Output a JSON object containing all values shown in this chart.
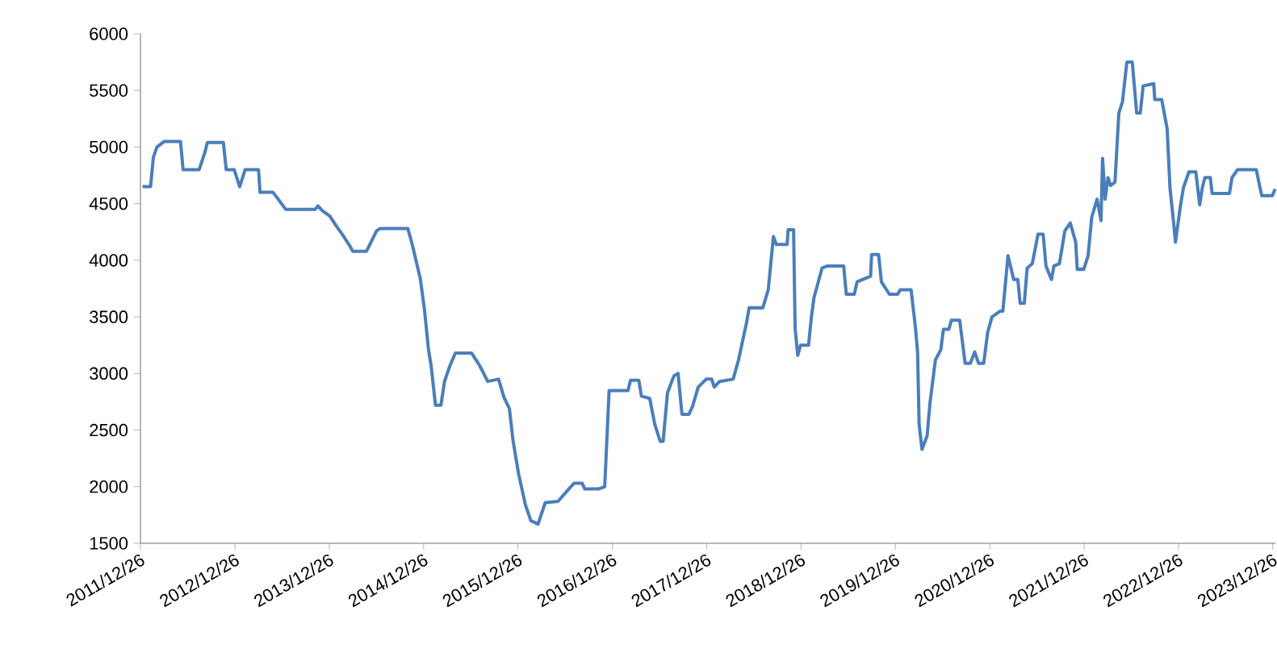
{
  "chart_data": {
    "type": "line",
    "x": [
      "2012-01-03",
      "2012-02-03",
      "2012-02-14",
      "2012-02-28",
      "2012-03-27",
      "2012-05-29",
      "2012-06-08",
      "2012-08-09",
      "2012-08-31",
      "2012-09-10",
      "2012-11-11",
      "2012-11-22",
      "2012-12-23",
      "2013-01-13",
      "2013-02-03",
      "2013-03-27",
      "2013-04-02",
      "2013-05-22",
      "2013-06-08",
      "2013-07-10",
      "2013-11-01",
      "2013-11-12",
      "2013-11-28",
      "2013-12-28",
      "2014-01-20",
      "2014-02-14",
      "2014-03-17",
      "2014-03-27",
      "2014-05-19",
      "2014-06-27",
      "2014-07-10",
      "2014-10-26",
      "2014-11-12",
      "2014-12-13",
      "2014-12-30",
      "2015-01-14",
      "2015-01-24",
      "2015-02-10",
      "2015-03-03",
      "2015-03-17",
      "2015-04-07",
      "2015-04-28",
      "2015-06-30",
      "2015-07-31",
      "2015-08-31",
      "2015-10-12",
      "2015-11-02",
      "2015-11-23",
      "2015-12-07",
      "2015-12-28",
      "2016-01-24",
      "2016-02-14",
      "2016-03-13",
      "2016-04-10",
      "2016-05-29",
      "2016-07-10",
      "2016-07-30",
      "2016-08-31",
      "2016-09-10",
      "2016-11-01",
      "2016-11-26",
      "2016-12-13",
      "2017-02-24",
      "2017-03-06",
      "2017-04-07",
      "2017-04-17",
      "2017-05-19",
      "2017-06-08",
      "2017-06-29",
      "2017-07-10",
      "2017-07-27",
      "2017-08-21",
      "2017-09-06",
      "2017-09-21",
      "2017-10-18",
      "2017-11-01",
      "2017-11-23",
      "2017-12-24",
      "2018-01-14",
      "2018-01-24",
      "2018-02-14",
      "2018-04-07",
      "2018-04-28",
      "2018-05-29",
      "2018-06-08",
      "2018-07-31",
      "2018-08-21",
      "2018-09-10",
      "2018-09-21",
      "2018-11-02",
      "2018-11-06",
      "2018-11-27",
      "2018-12-03",
      "2018-12-13",
      "2018-12-24",
      "2019-01-24",
      "2019-02-04",
      "2019-02-14",
      "2019-03-17",
      "2019-04-07",
      "2019-06-09",
      "2019-06-19",
      "2019-07-20",
      "2019-07-31",
      "2019-09-21",
      "2019-09-25",
      "2019-10-22",
      "2019-11-02",
      "2019-12-03",
      "2020-01-04",
      "2020-01-14",
      "2020-02-25",
      "2020-03-13",
      "2020-03-21",
      "2020-03-27",
      "2020-04-07",
      "2020-04-27",
      "2020-05-08",
      "2020-05-29",
      "2020-06-19",
      "2020-06-29",
      "2020-07-20",
      "2020-07-30",
      "2020-08-31",
      "2020-09-21",
      "2020-10-11",
      "2020-10-28",
      "2020-11-12",
      "2020-12-02",
      "2020-12-17",
      "2021-01-03",
      "2021-02-03",
      "2021-02-14",
      "2021-03-06",
      "2021-03-28",
      "2021-04-13",
      "2021-04-22",
      "2021-05-08",
      "2021-05-19",
      "2021-06-08",
      "2021-06-30",
      "2021-07-20",
      "2021-07-31",
      "2021-08-21",
      "2021-08-31",
      "2021-09-21",
      "2021-10-12",
      "2021-11-02",
      "2021-11-23",
      "2021-11-29",
      "2021-12-24",
      "2022-01-10",
      "2022-01-24",
      "2022-02-14",
      "2022-03-01",
      "2022-03-07",
      "2022-03-17",
      "2022-03-28",
      "2022-04-07",
      "2022-04-24",
      "2022-05-09",
      "2022-05-23",
      "2022-06-09",
      "2022-06-30",
      "2022-07-17",
      "2022-07-31",
      "2022-08-11",
      "2022-09-21",
      "2022-09-25",
      "2022-10-22",
      "2022-11-12",
      "2022-11-23",
      "2022-12-08",
      "2022-12-14",
      "2023-01-03",
      "2023-01-14",
      "2023-02-04",
      "2023-03-03",
      "2023-03-18",
      "2023-03-28",
      "2023-04-07",
      "2023-04-28",
      "2023-05-05",
      "2023-07-11",
      "2023-07-21",
      "2023-08-11",
      "2023-10-23",
      "2023-11-02",
      "2023-11-13",
      "2023-12-24",
      "2024-01-04"
    ],
    "series": [
      {
        "color": "#4a7ebb",
        "values": [
          4650,
          4650,
          4910,
          5000,
          5050,
          5050,
          4800,
          4800,
          4950,
          5040,
          5040,
          4800,
          4800,
          4650,
          4800,
          4800,
          4600,
          4600,
          4550,
          4450,
          4450,
          4480,
          4440,
          4390,
          4310,
          4230,
          4120,
          4080,
          4080,
          4260,
          4280,
          4280,
          4140,
          3840,
          3550,
          3210,
          3070,
          2720,
          2720,
          2930,
          3070,
          3180,
          3180,
          3070,
          2930,
          2950,
          2790,
          2690,
          2410,
          2120,
          1840,
          1700,
          1670,
          1860,
          1870,
          1980,
          2030,
          2030,
          1980,
          1980,
          2000,
          2850,
          2850,
          2940,
          2940,
          2800,
          2780,
          2550,
          2400,
          2400,
          2830,
          2980,
          3000,
          2640,
          2640,
          2710,
          2880,
          2950,
          2950,
          2880,
          2930,
          2950,
          3120,
          3450,
          3580,
          3580,
          3740,
          4210,
          4140,
          4140,
          4270,
          4270,
          3400,
          3160,
          3250,
          3250,
          3500,
          3670,
          3930,
          3950,
          3950,
          3700,
          3700,
          3810,
          3860,
          4050,
          4050,
          3810,
          3700,
          3700,
          3740,
          3740,
          3400,
          3190,
          2550,
          2330,
          2450,
          2740,
          3120,
          3210,
          3390,
          3390,
          3470,
          3470,
          3090,
          3090,
          3190,
          3090,
          3090,
          3360,
          3500,
          3550,
          3550,
          4040,
          3830,
          3830,
          3620,
          3620,
          3930,
          3970,
          4230,
          4230,
          3950,
          3830,
          3950,
          3970,
          4260,
          4330,
          4160,
          3920,
          3920,
          4040,
          4380,
          4540,
          4350,
          4900,
          4540,
          4730,
          4660,
          4690,
          5300,
          5400,
          5750,
          5750,
          5300,
          5300,
          5540,
          5560,
          5420,
          5420,
          5160,
          4640,
          4310,
          4160,
          4490,
          4640,
          4780,
          4780,
          4490,
          4640,
          4730,
          4730,
          4590,
          4590,
          4730,
          4800,
          4800,
          4690,
          4570,
          4570,
          4630
        ]
      }
    ],
    "xlim": [
      "2011-12-26",
      "2024-01-05"
    ],
    "xticks": [
      {
        "value": "2011-12-26",
        "label": "2011/12/26"
      },
      {
        "value": "2012-12-26",
        "label": "2012/12/26"
      },
      {
        "value": "2013-12-26",
        "label": "2013/12/26"
      },
      {
        "value": "2014-12-26",
        "label": "2014/12/26"
      },
      {
        "value": "2015-12-26",
        "label": "2015/12/26"
      },
      {
        "value": "2016-12-26",
        "label": "2016/12/26"
      },
      {
        "value": "2017-12-26",
        "label": "2017/12/26"
      },
      {
        "value": "2018-12-26",
        "label": "2018/12/26"
      },
      {
        "value": "2019-12-26",
        "label": "2019/12/26"
      },
      {
        "value": "2020-12-26",
        "label": "2020/12/26"
      },
      {
        "value": "2021-12-26",
        "label": "2021/12/26"
      },
      {
        "value": "2022-12-26",
        "label": "2022/12/26"
      },
      {
        "value": "2023-12-26",
        "label": "2023/12/26"
      }
    ],
    "ylim": [
      1500,
      6000
    ],
    "yticks": [
      1500,
      2000,
      2500,
      3000,
      3500,
      4000,
      4500,
      5000,
      5500,
      6000
    ]
  }
}
